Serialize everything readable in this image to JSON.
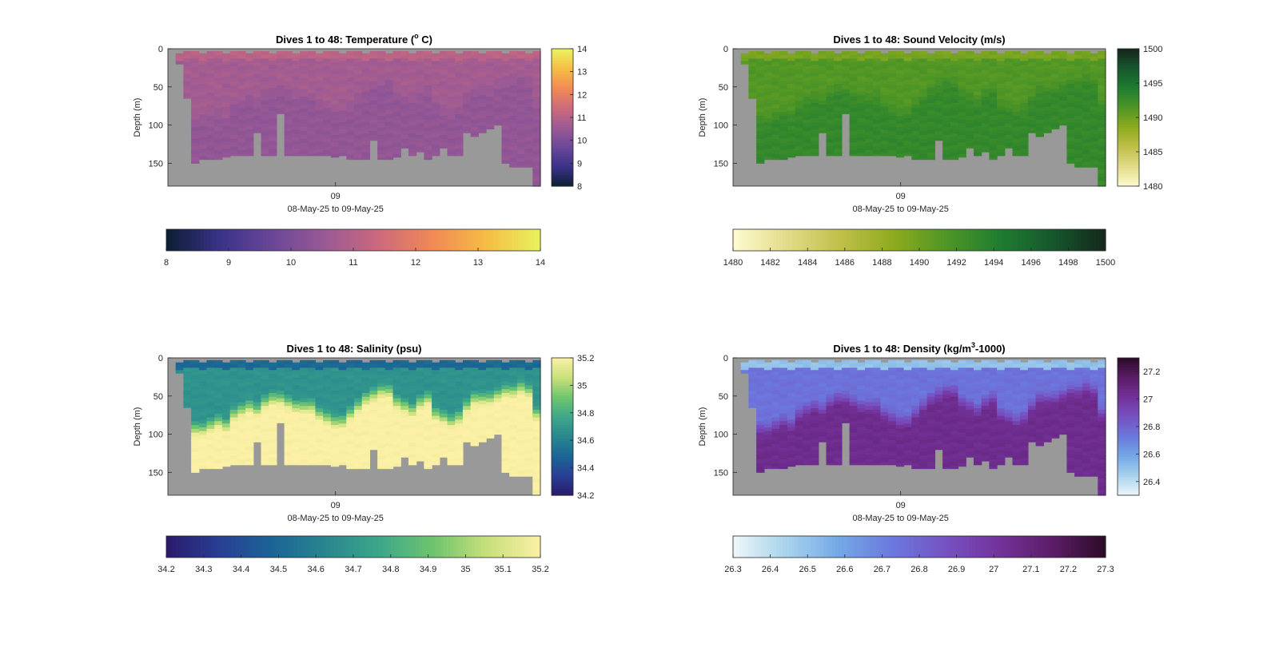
{
  "chart_data": [
    {
      "type": "heatmap",
      "title_text": "Dives 1 to 48: Temperature (",
      "title_sup": "o",
      "title_end": " C)",
      "ylabel": "Depth (m)",
      "xtick": "09",
      "xlabel": "08-May-25 to 09-May-25",
      "ylim": [
        180,
        0
      ],
      "yticks": [
        0,
        50,
        100,
        150
      ],
      "nodata_color": "#999999",
      "colormap": [
        "#0c1e33",
        "#3a3288",
        "#6b4798",
        "#9c5a94",
        "#cd6a7c",
        "#f18a55",
        "#f6bd45",
        "#e8f35f"
      ],
      "side_colorbar": {
        "range": [
          8,
          14
        ],
        "ticks": [
          8,
          9,
          10,
          11,
          12,
          13,
          14
        ]
      },
      "bottom_colorbar": {
        "range": [
          8,
          14
        ],
        "ticks": [
          8,
          9,
          10,
          11,
          12,
          13,
          14
        ]
      },
      "dives": 48,
      "surface_value": 11.1,
      "mixed_value": 10.7,
      "deep_value": 10.4,
      "thermocline_depth_m": [
        30,
        60,
        80,
        80,
        80,
        75,
        70,
        75,
        60,
        55,
        50,
        55,
        45,
        40,
        40,
        45,
        50,
        50,
        50,
        60,
        65,
        70,
        70,
        60,
        50,
        40,
        35,
        30,
        30,
        45,
        50,
        55,
        45,
        40,
        60,
        65,
        70,
        65,
        50,
        40,
        40,
        40,
        35,
        30,
        30,
        25,
        30,
        60
      ],
      "bottom_depth_m": [
        0,
        20,
        65,
        150,
        145,
        145,
        145,
        142,
        140,
        140,
        140,
        110,
        140,
        140,
        85,
        140,
        140,
        140,
        140,
        140,
        140,
        142,
        140,
        145,
        145,
        145,
        120,
        145,
        145,
        142,
        130,
        140,
        135,
        145,
        140,
        130,
        140,
        140,
        110,
        115,
        110,
        105,
        100,
        150,
        155,
        155,
        155,
        180
      ]
    },
    {
      "type": "heatmap",
      "title_text": "Dives 1 to 48: Sound Velocity (m/s)",
      "ylabel": "Depth (m)",
      "xtick": "09",
      "xlabel": "08-May-25 to 09-May-25",
      "ylim": [
        180,
        0
      ],
      "yticks": [
        0,
        50,
        100,
        150
      ],
      "nodata_color": "#999999",
      "colormap": [
        "#fefcd0",
        "#e3db8a",
        "#c0c04a",
        "#8fab1e",
        "#4f9626",
        "#1f7d30",
        "#16582d",
        "#15271c"
      ],
      "side_colorbar": {
        "range": [
          1480,
          1500
        ],
        "ticks": [
          1480,
          1485,
          1490,
          1495,
          1500
        ]
      },
      "bottom_colorbar": {
        "range": [
          1480,
          1500
        ],
        "ticks": [
          1480,
          1482,
          1484,
          1486,
          1488,
          1490,
          1492,
          1494,
          1496,
          1498,
          1500
        ]
      },
      "dives": 48,
      "surface_value": 1489.6,
      "mixed_value": 1491.3,
      "deep_value": 1493.0,
      "thermocline_depth_m": [
        30,
        60,
        80,
        80,
        80,
        75,
        70,
        75,
        60,
        55,
        50,
        55,
        45,
        40,
        40,
        45,
        50,
        50,
        50,
        60,
        65,
        70,
        70,
        60,
        50,
        40,
        35,
        30,
        30,
        45,
        50,
        55,
        45,
        40,
        60,
        65,
        70,
        65,
        50,
        40,
        40,
        40,
        35,
        30,
        30,
        25,
        30,
        60
      ],
      "bottom_depth_m": [
        0,
        20,
        65,
        150,
        145,
        145,
        145,
        142,
        140,
        140,
        140,
        110,
        140,
        140,
        85,
        140,
        140,
        140,
        140,
        140,
        140,
        142,
        140,
        145,
        145,
        145,
        120,
        145,
        145,
        142,
        130,
        140,
        135,
        145,
        140,
        130,
        140,
        140,
        110,
        115,
        110,
        105,
        100,
        150,
        155,
        155,
        155,
        180
      ]
    },
    {
      "type": "heatmap",
      "title_text": "Dives 1 to 48: Salinity (psu)",
      "ylabel": "Depth (m)",
      "xtick": "09",
      "xlabel": "08-May-25 to 09-May-25",
      "ylim": [
        180,
        0
      ],
      "yticks": [
        0,
        50,
        100,
        150
      ],
      "nodata_color": "#999999",
      "colormap": [
        "#2a1a6b",
        "#283f94",
        "#1b6596",
        "#29878f",
        "#3da789",
        "#6fc46e",
        "#c7e07a",
        "#fbf0a6"
      ],
      "side_colorbar": {
        "range": [
          34.2,
          35.2
        ],
        "ticks": [
          34.2,
          34.4,
          34.6,
          34.8,
          35,
          35.2
        ]
      },
      "bottom_colorbar": {
        "range": [
          34.2,
          35.2
        ],
        "ticks": [
          34.2,
          34.3,
          34.4,
          34.5,
          34.6,
          34.7,
          34.8,
          34.9,
          35,
          35.1,
          35.2
        ]
      },
      "dives": 48,
      "surface_value": 34.5,
      "mixed_value": 34.68,
      "deep_value": 35.2,
      "thermocline_depth_m": [
        30,
        60,
        80,
        80,
        80,
        75,
        70,
        75,
        60,
        55,
        50,
        55,
        45,
        40,
        40,
        45,
        50,
        50,
        50,
        60,
        65,
        70,
        70,
        60,
        50,
        40,
        35,
        30,
        30,
        45,
        50,
        55,
        45,
        40,
        60,
        65,
        70,
        65,
        50,
        40,
        40,
        40,
        35,
        30,
        30,
        25,
        30,
        60
      ],
      "bottom_depth_m": [
        0,
        20,
        65,
        150,
        145,
        145,
        145,
        142,
        140,
        140,
        140,
        110,
        140,
        140,
        85,
        140,
        140,
        140,
        140,
        140,
        140,
        142,
        140,
        145,
        145,
        145,
        120,
        145,
        145,
        142,
        130,
        140,
        135,
        145,
        140,
        130,
        140,
        140,
        110,
        115,
        110,
        105,
        100,
        150,
        155,
        155,
        155,
        180
      ]
    },
    {
      "type": "heatmap",
      "title_text": "Dives 1 to 48: Density (kg/m",
      "title_sup": "3",
      "title_end": "-1000)",
      "ylabel": "Depth (m)",
      "xtick": "09",
      "xlabel": "08-May-25 to 09-May-25",
      "ylim": [
        180,
        0
      ],
      "yticks": [
        0,
        50,
        100,
        150
      ],
      "nodata_color": "#999999",
      "colormap": [
        "#eef7f9",
        "#a8d3ec",
        "#74a8e6",
        "#6b78dd",
        "#7652c2",
        "#74329a",
        "#5b1d68",
        "#2c0b26"
      ],
      "side_colorbar": {
        "range": [
          26.3,
          27.3
        ],
        "ticks": [
          26.4,
          26.6,
          26.8,
          27,
          27.2
        ]
      },
      "bottom_colorbar": {
        "range": [
          26.3,
          27.3
        ],
        "ticks": [
          26.3,
          26.4,
          26.5,
          26.6,
          26.7,
          26.8,
          26.9,
          27,
          27.1,
          27.2,
          27.3
        ]
      },
      "dives": 48,
      "surface_value": 26.5,
      "mixed_value": 26.75,
      "deep_value": 27.05,
      "thermocline_depth_m": [
        30,
        60,
        80,
        80,
        80,
        75,
        70,
        75,
        60,
        55,
        50,
        55,
        45,
        40,
        40,
        45,
        50,
        50,
        50,
        60,
        65,
        70,
        70,
        60,
        50,
        40,
        35,
        30,
        30,
        45,
        50,
        55,
        45,
        40,
        60,
        65,
        70,
        65,
        50,
        40,
        40,
        40,
        35,
        30,
        30,
        25,
        30,
        60
      ],
      "bottom_depth_m": [
        0,
        20,
        65,
        150,
        145,
        145,
        145,
        142,
        140,
        140,
        140,
        110,
        140,
        140,
        85,
        140,
        140,
        140,
        140,
        140,
        140,
        142,
        140,
        145,
        145,
        145,
        120,
        145,
        145,
        142,
        130,
        140,
        135,
        145,
        140,
        130,
        140,
        140,
        110,
        115,
        110,
        105,
        100,
        150,
        155,
        155,
        155,
        180
      ]
    }
  ]
}
